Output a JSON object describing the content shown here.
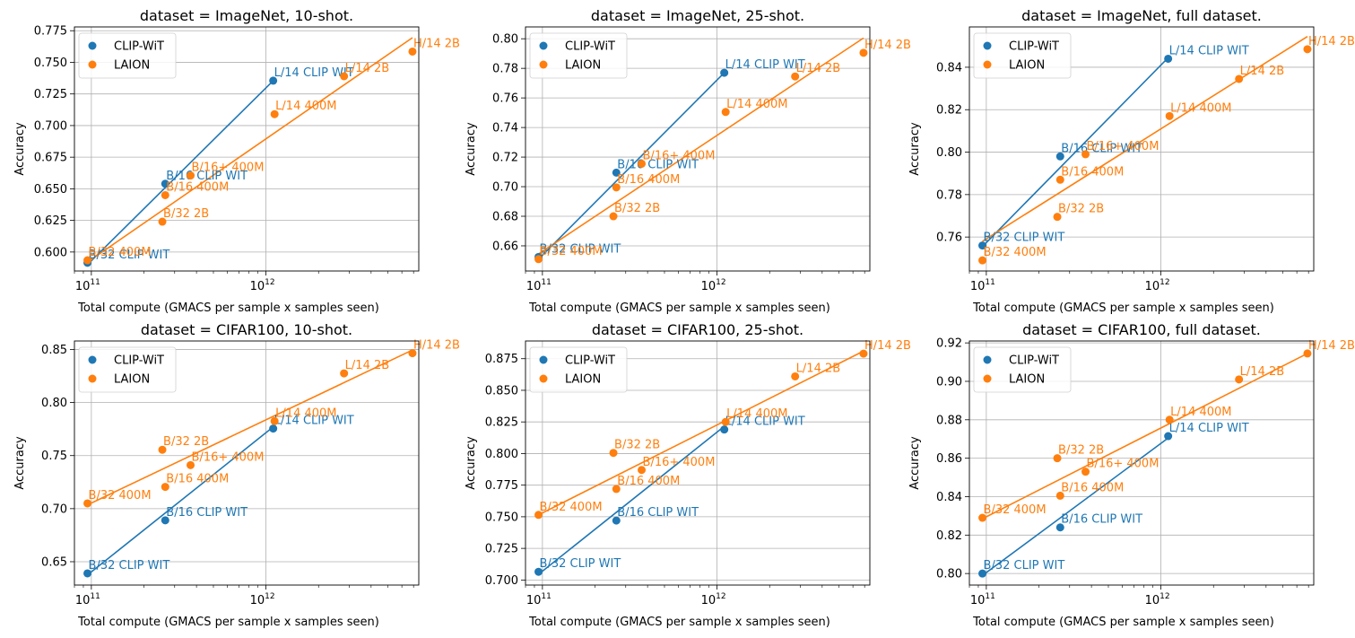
{
  "colors": {
    "clip": "#1f77b4",
    "laion": "#ff7f0e",
    "grid": "#b0b0b0"
  },
  "chart_data": [
    {
      "type": "scatter",
      "title": "dataset = ImageNet, 10-shot.",
      "xlabel": "Total compute (GMACS per sample x samples seen)",
      "ylabel": "Accuracy",
      "xscale": "log",
      "xlim": [
        80000000000,
        7500000000000
      ],
      "ylim": [
        0.585,
        0.778
      ],
      "yticks": [
        "0.600",
        "0.625",
        "0.650",
        "0.675",
        "0.700",
        "0.725",
        "0.750",
        "0.775"
      ],
      "legend": [
        "CLIP-WiT",
        "LAION"
      ],
      "legend_position": "upper left",
      "series": [
        {
          "name": "CLIP-WiT",
          "points": [
            {
              "label": "B/32 CLIP WIT",
              "x": 95000000000,
              "y": 0.5915
            },
            {
              "label": "B/16 CLIP WIT",
              "x": 265000000000,
              "y": 0.654
            },
            {
              "label": "L/14 CLIP WIT",
              "x": 1100000000000,
              "y": 0.7355
            }
          ],
          "fit": [
            [
              95000000000,
              0.59
            ],
            [
              1100000000000,
              0.7355
            ]
          ]
        },
        {
          "name": "LAION",
          "points": [
            {
              "label": "B/32 400M",
              "x": 95000000000,
              "y": 0.5935
            },
            {
              "label": "B/32 2B",
              "x": 255000000000,
              "y": 0.624
            },
            {
              "label": "B/16 400M",
              "x": 265000000000,
              "y": 0.645
            },
            {
              "label": "B/16+ 400M",
              "x": 370000000000,
              "y": 0.6605
            },
            {
              "label": "L/14 400M",
              "x": 1120000000000,
              "y": 0.709
            },
            {
              "label": "L/14 2B",
              "x": 2800000000000,
              "y": 0.739
            },
            {
              "label": "H/14 2B",
              "x": 6900000000000,
              "y": 0.7585
            }
          ],
          "fit": [
            [
              95000000000,
              0.592
            ],
            [
              6900000000000,
              0.7695
            ]
          ]
        }
      ]
    },
    {
      "type": "scatter",
      "title": "dataset = ImageNet, 25-shot.",
      "xlabel": "Total compute (GMACS per sample x samples seen)",
      "ylabel": "Accuracy",
      "xscale": "log",
      "xlim": [
        80000000000,
        7500000000000
      ],
      "ylim": [
        0.643,
        0.808
      ],
      "yticks": [
        "0.66",
        "0.68",
        "0.70",
        "0.72",
        "0.74",
        "0.76",
        "0.78",
        "0.80"
      ],
      "legend": [
        "CLIP-WiT",
        "LAION"
      ],
      "legend_position": "upper left",
      "series": [
        {
          "name": "CLIP-WiT",
          "points": [
            {
              "label": "B/32 CLIP WIT",
              "x": 95000000000,
              "y": 0.6525
            },
            {
              "label": "B/16 CLIP WIT",
              "x": 265000000000,
              "y": 0.7095
            },
            {
              "label": "L/14 CLIP WIT",
              "x": 1100000000000,
              "y": 0.777
            }
          ],
          "fit": [
            [
              95000000000,
              0.651
            ],
            [
              1100000000000,
              0.777
            ]
          ]
        },
        {
          "name": "LAION",
          "points": [
            {
              "label": "B/32 400M",
              "x": 95000000000,
              "y": 0.651
            },
            {
              "label": "B/32 2B",
              "x": 255000000000,
              "y": 0.68
            },
            {
              "label": "B/16 400M",
              "x": 265000000000,
              "y": 0.6995
            },
            {
              "label": "B/16+ 400M",
              "x": 370000000000,
              "y": 0.7155
            },
            {
              "label": "L/14 400M",
              "x": 1120000000000,
              "y": 0.7505
            },
            {
              "label": "L/14 2B",
              "x": 2800000000000,
              "y": 0.7745
            },
            {
              "label": "H/14 2B",
              "x": 6900000000000,
              "y": 0.7905
            }
          ],
          "fit": [
            [
              95000000000,
              0.6545
            ],
            [
              6900000000000,
              0.8005
            ]
          ]
        }
      ]
    },
    {
      "type": "scatter",
      "title": "dataset = ImageNet, full dataset.",
      "xlabel": "Total compute (GMACS per sample x samples seen)",
      "ylabel": "Accuracy",
      "xscale": "log",
      "xlim": [
        80000000000,
        7500000000000
      ],
      "ylim": [
        0.744,
        0.859
      ],
      "yticks": [
        "0.76",
        "0.78",
        "0.80",
        "0.82",
        "0.84"
      ],
      "legend": [
        "CLIP-WiT",
        "LAION"
      ],
      "legend_position": "upper left",
      "series": [
        {
          "name": "CLIP-WiT",
          "points": [
            {
              "label": "B/32 CLIP WIT",
              "x": 95000000000,
              "y": 0.756
            },
            {
              "label": "B/16 CLIP WIT",
              "x": 265000000000,
              "y": 0.798
            },
            {
              "label": "L/14 CLIP WIT",
              "x": 1100000000000,
              "y": 0.844
            }
          ],
          "fit": [
            [
              95000000000,
              0.7555
            ],
            [
              1100000000000,
              0.8445
            ]
          ]
        },
        {
          "name": "LAION",
          "points": [
            {
              "label": "B/32 400M",
              "x": 95000000000,
              "y": 0.749
            },
            {
              "label": "B/32 2B",
              "x": 255000000000,
              "y": 0.7695
            },
            {
              "label": "B/16 400M",
              "x": 265000000000,
              "y": 0.787
            },
            {
              "label": "B/16+ 400M",
              "x": 370000000000,
              "y": 0.799
            },
            {
              "label": "L/14 400M",
              "x": 1120000000000,
              "y": 0.817
            },
            {
              "label": "L/14 2B",
              "x": 2800000000000,
              "y": 0.8345
            },
            {
              "label": "H/14 2B",
              "x": 6900000000000,
              "y": 0.8485
            }
          ],
          "fit": [
            [
              95000000000,
              0.758
            ],
            [
              6900000000000,
              0.8545
            ]
          ]
        }
      ]
    },
    {
      "type": "scatter",
      "title": "dataset = CIFAR100, 10-shot.",
      "xlabel": "Total compute (GMACS per sample x samples seen)",
      "ylabel": "Accuracy",
      "xscale": "log",
      "xlim": [
        80000000000,
        7500000000000
      ],
      "ylim": [
        0.628,
        0.858
      ],
      "yticks": [
        "0.65",
        "0.70",
        "0.75",
        "0.80",
        "0.85"
      ],
      "legend": [
        "CLIP-WiT",
        "LAION"
      ],
      "legend_position": "upper left",
      "series": [
        {
          "name": "CLIP-WiT",
          "points": [
            {
              "label": "B/32 CLIP WIT",
              "x": 95000000000,
              "y": 0.639
            },
            {
              "label": "B/16 CLIP WIT",
              "x": 265000000000,
              "y": 0.689
            },
            {
              "label": "L/14 CLIP WIT",
              "x": 1100000000000,
              "y": 0.7755
            }
          ],
          "fit": [
            [
              95000000000,
              0.6375
            ],
            [
              1100000000000,
              0.777
            ]
          ]
        },
        {
          "name": "LAION",
          "points": [
            {
              "label": "B/32 400M",
              "x": 95000000000,
              "y": 0.705
            },
            {
              "label": "B/32 2B",
              "x": 255000000000,
              "y": 0.7555
            },
            {
              "label": "B/16 400M",
              "x": 265000000000,
              "y": 0.7205
            },
            {
              "label": "B/16+ 400M",
              "x": 370000000000,
              "y": 0.741
            },
            {
              "label": "L/14 400M",
              "x": 1120000000000,
              "y": 0.7825
            },
            {
              "label": "L/14 2B",
              "x": 2800000000000,
              "y": 0.8275
            },
            {
              "label": "H/14 2B",
              "x": 6900000000000,
              "y": 0.8465
            }
          ],
          "fit": [
            [
              95000000000,
              0.7035
            ],
            [
              6900000000000,
              0.8495
            ]
          ]
        }
      ]
    },
    {
      "type": "scatter",
      "title": "dataset = CIFAR100, 25-shot.",
      "xlabel": "Total compute (GMACS per sample x samples seen)",
      "ylabel": "Accuracy",
      "xscale": "log",
      "xlim": [
        80000000000,
        7500000000000
      ],
      "ylim": [
        0.696,
        0.889
      ],
      "yticks": [
        "0.700",
        "0.725",
        "0.750",
        "0.775",
        "0.800",
        "0.825",
        "0.850",
        "0.875"
      ],
      "legend": [
        "CLIP-WiT",
        "LAION"
      ],
      "legend_position": "upper left",
      "series": [
        {
          "name": "CLIP-WiT",
          "points": [
            {
              "label": "B/32 CLIP WIT",
              "x": 95000000000,
              "y": 0.7065
            },
            {
              "label": "B/16 CLIP WIT",
              "x": 265000000000,
              "y": 0.747
            },
            {
              "label": "L/14 CLIP WIT",
              "x": 1100000000000,
              "y": 0.819
            }
          ],
          "fit": [
            [
              95000000000,
              0.7045
            ],
            [
              1100000000000,
              0.8215
            ]
          ]
        },
        {
          "name": "LAION",
          "points": [
            {
              "label": "B/32 400M",
              "x": 95000000000,
              "y": 0.7515
            },
            {
              "label": "B/32 2B",
              "x": 255000000000,
              "y": 0.8005
            },
            {
              "label": "B/16 400M",
              "x": 265000000000,
              "y": 0.772
            },
            {
              "label": "B/16+ 400M",
              "x": 370000000000,
              "y": 0.787
            },
            {
              "label": "L/14 400M",
              "x": 1120000000000,
              "y": 0.825
            },
            {
              "label": "L/14 2B",
              "x": 2800000000000,
              "y": 0.861
            },
            {
              "label": "H/14 2B",
              "x": 6900000000000,
              "y": 0.879
            }
          ],
          "fit": [
            [
              95000000000,
              0.7515
            ],
            [
              6900000000000,
              0.881
            ]
          ]
        }
      ]
    },
    {
      "type": "scatter",
      "title": "dataset = CIFAR100, full dataset.",
      "xlabel": "Total compute (GMACS per sample x samples seen)",
      "ylabel": "Accuracy",
      "xscale": "log",
      "xlim": [
        80000000000,
        7500000000000
      ],
      "ylim": [
        0.794,
        0.921
      ],
      "yticks": [
        "0.80",
        "0.82",
        "0.84",
        "0.86",
        "0.88",
        "0.90",
        "0.92"
      ],
      "legend": [
        "CLIP-WiT",
        "LAION"
      ],
      "legend_position": "upper left",
      "series": [
        {
          "name": "CLIP-WiT",
          "points": [
            {
              "label": "B/32 CLIP WIT",
              "x": 95000000000,
              "y": 0.8
            },
            {
              "label": "B/16 CLIP WIT",
              "x": 265000000000,
              "y": 0.824
            },
            {
              "label": "L/14 CLIP WIT",
              "x": 1100000000000,
              "y": 0.8715
            }
          ],
          "fit": [
            [
              95000000000,
              0.799
            ],
            [
              1100000000000,
              0.8705
            ]
          ]
        },
        {
          "name": "LAION",
          "points": [
            {
              "label": "B/32 400M",
              "x": 95000000000,
              "y": 0.829
            },
            {
              "label": "B/32 2B",
              "x": 255000000000,
              "y": 0.86
            },
            {
              "label": "B/16 400M",
              "x": 265000000000,
              "y": 0.8405
            },
            {
              "label": "B/16+ 400M",
              "x": 370000000000,
              "y": 0.853
            },
            {
              "label": "L/14 400M",
              "x": 1120000000000,
              "y": 0.88
            },
            {
              "label": "L/14 2B",
              "x": 2800000000000,
              "y": 0.901
            },
            {
              "label": "H/14 2B",
              "x": 6900000000000,
              "y": 0.9145
            }
          ],
          "fit": [
            [
              95000000000,
              0.8285
            ],
            [
              6900000000000,
              0.9145
            ]
          ]
        }
      ]
    }
  ]
}
